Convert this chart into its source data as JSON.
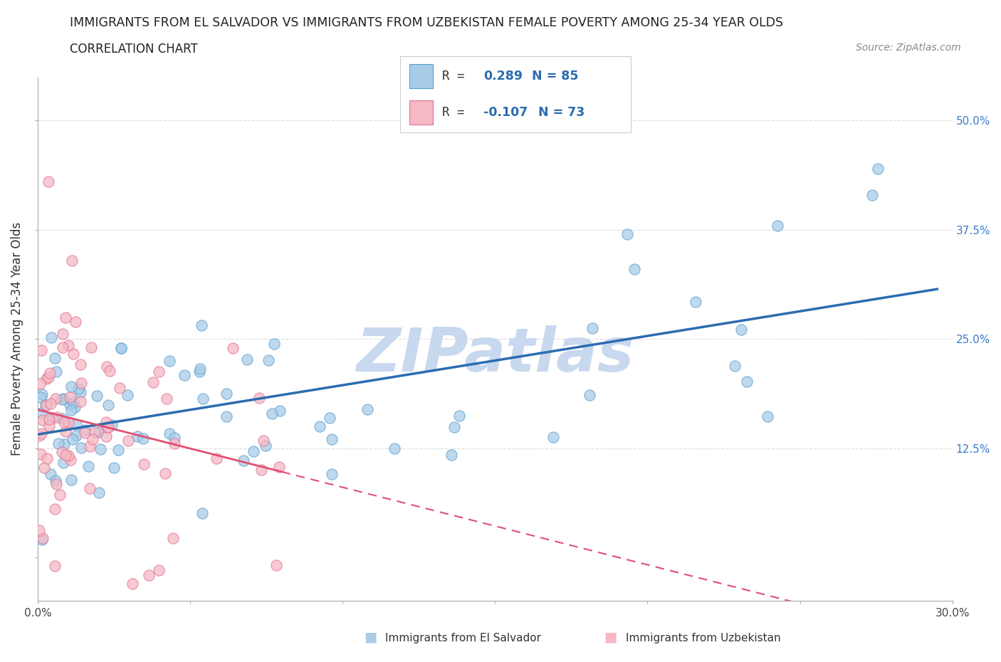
{
  "title": "IMMIGRANTS FROM EL SALVADOR VS IMMIGRANTS FROM UZBEKISTAN FEMALE POVERTY AMONG 25-34 YEAR OLDS",
  "subtitle": "CORRELATION CHART",
  "source": "Source: ZipAtlas.com",
  "ylabel": "Female Poverty Among 25-34 Year Olds",
  "xlim": [
    0.0,
    0.3
  ],
  "ylim": [
    -0.05,
    0.55
  ],
  "xticks": [
    0.0,
    0.05,
    0.1,
    0.15,
    0.2,
    0.25,
    0.3
  ],
  "xticklabels": [
    "0.0%",
    "",
    "",
    "",
    "",
    "",
    "30.0%"
  ],
  "yticks": [
    0.0,
    0.125,
    0.25,
    0.375,
    0.5
  ],
  "yticklabels": [
    "",
    "12.5%",
    "25.0%",
    "37.5%",
    "50.0%"
  ],
  "grid_color": "#dddddd",
  "background_color": "#ffffff",
  "el_salvador_color": "#a8cce8",
  "el_salvador_edge": "#5b9ec9",
  "uzbekistan_color": "#f5b8c4",
  "uzbekistan_edge": "#e07090",
  "el_salvador_line_color": "#2b6cb0",
  "uzbekistan_line_color": "#e05070",
  "el_salvador_R": "0.289",
  "el_salvador_N": "85",
  "uzbekistan_R": "-0.107",
  "uzbekistan_N": "73",
  "legend_label_es": "Immigrants from El Salvador",
  "legend_label_uz": "Immigrants from Uzbekistan",
  "watermark": "ZIPatlas",
  "watermark_color": "#c8d8ee",
  "legend_sq_es": "#a8cce8",
  "legend_sq_uz": "#f5b8c4",
  "legend_sq_edge_es": "#5b9ec9",
  "legend_sq_edge_uz": "#e07090"
}
